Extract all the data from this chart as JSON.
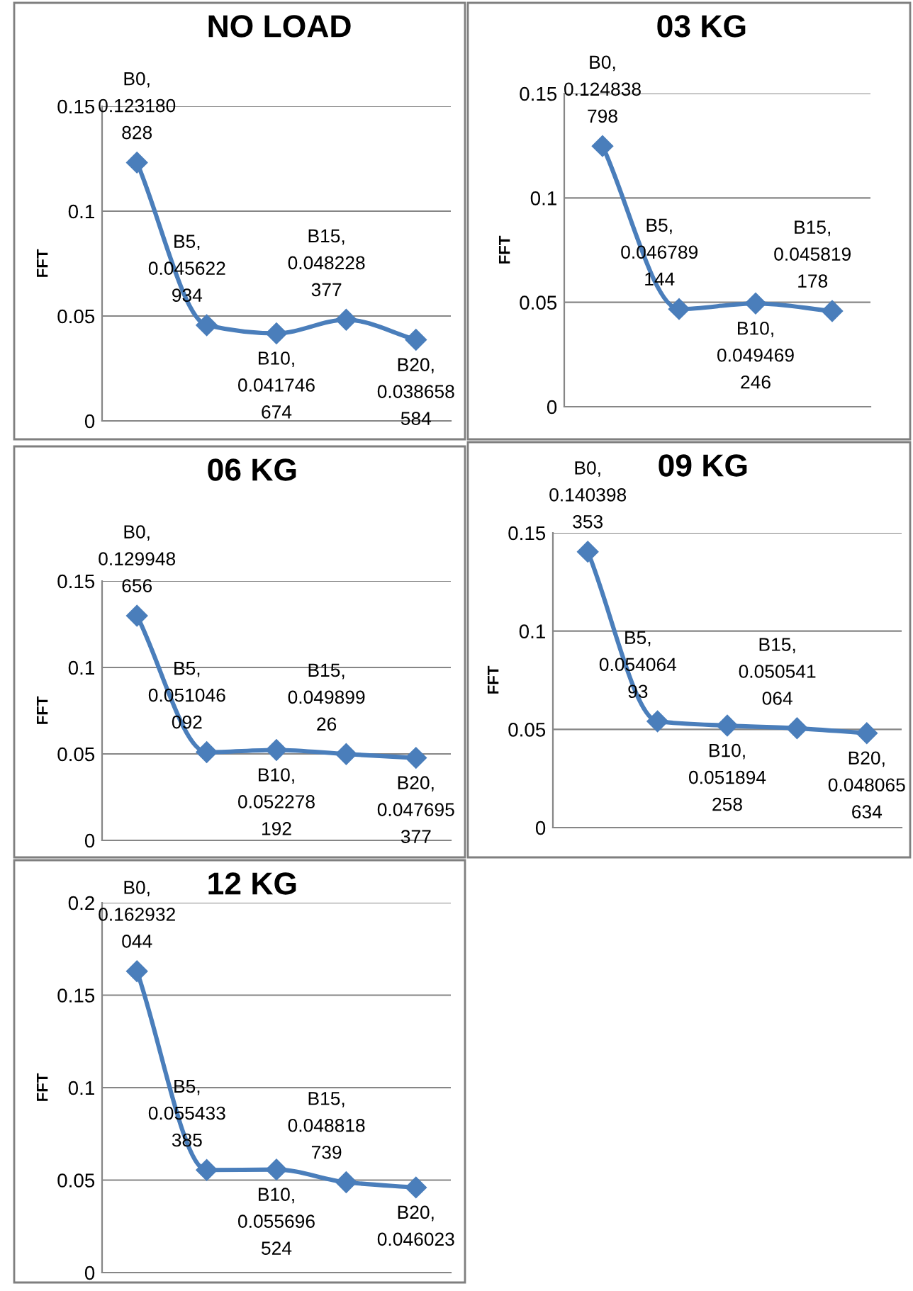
{
  "chart_data": [
    {
      "type": "line",
      "title": "NO LOAD",
      "ylabel": "FFT",
      "categories": [
        null,
        null,
        null,
        null,
        null
      ],
      "series": [
        {
          "color": "#4a7ebb",
          "values": [
            0.123180828,
            0.045622934,
            0.041746674,
            0.048228377,
            0.038658584
          ],
          "value_labels": [
            "B0, 0.123180828",
            "B5, 0.045622934",
            "B10, 0.041746674",
            "B15, 0.048228377",
            "B20, 0.038658584"
          ]
        }
      ],
      "ylim": [
        0,
        0.15
      ],
      "yticks": [
        0,
        0.05,
        0.1,
        0.15
      ],
      "grid": "y",
      "marker": "diamond",
      "tick_labels": "y"
    },
    {
      "type": "line",
      "title": "06 KG",
      "ylabel": "FFT",
      "categories": [
        null,
        null,
        null,
        null,
        null
      ],
      "series": [
        {
          "color": "#4a7ebb",
          "values": [
            0.129948656,
            0.051046092,
            0.052278192,
            0.04989926,
            0.047695377
          ],
          "value_labels": [
            "B0, 0.129948656",
            "B5, 0.051046092",
            "B10, 0.052278192",
            "B15, 0.04989926",
            "B20, 0.047695377"
          ]
        }
      ],
      "ylim": [
        0,
        0.15
      ],
      "yticks": [
        0,
        0.05,
        0.1,
        0.15
      ],
      "grid": "y",
      "marker": "diamond",
      "tick_labels": "y"
    },
    {
      "type": "line",
      "title": "12 KG",
      "ylabel": "FFT",
      "categories": [
        null,
        null,
        null,
        null,
        null
      ],
      "series": [
        {
          "color": "#4a7ebb",
          "values": [
            0.162932044,
            0.055433385,
            0.055696524,
            0.048818739,
            0.046023
          ],
          "value_labels": [
            "B0, 0.162932044",
            "B5, 0.055433385",
            "B10, 0.055696524",
            "B15, 0.048818739",
            "B20, 0.046023"
          ]
        }
      ],
      "ylim": [
        0,
        0.2
      ],
      "yticks": [
        0,
        0.05,
        0.1,
        0.15,
        0.2
      ],
      "grid": "y",
      "marker": "diamond",
      "tick_labels": "y"
    },
    {
      "type": "line",
      "title": "03 KG",
      "ylabel": "FFT",
      "categories": [
        null,
        null,
        null,
        null
      ],
      "series": [
        {
          "color": "#4a7ebb",
          "values": [
            0.124838798,
            0.046789144,
            0.049469246,
            0.045819178
          ],
          "value_labels": [
            "B0, 0.124838798",
            "B5, 0.046789144",
            "B10, 0.049469246",
            "B15, 0.045819178"
          ]
        }
      ],
      "ylim": [
        0,
        0.15
      ],
      "yticks": [
        0,
        0.05,
        0.1,
        0.15
      ],
      "grid": "y",
      "marker": "diamond",
      "tick_labels": "y"
    },
    {
      "type": "line",
      "title": "09 KG",
      "ylabel": "FFT",
      "categories": [
        null,
        null,
        null,
        null,
        null
      ],
      "series": [
        {
          "color": "#4a7ebb",
          "values": [
            0.140398353,
            0.05406493,
            0.051894258,
            0.050541064,
            0.048065634
          ],
          "value_labels": [
            "B0, 0.140398353",
            "B5, 0.05406493",
            "B10, 0.051894258",
            "B15, 0.050541064",
            "B20, 0.048065634"
          ]
        }
      ],
      "ylim": [
        0,
        0.15
      ],
      "yticks": [
        0,
        0.05,
        0.1,
        0.15
      ],
      "grid": "y",
      "marker": "diamond",
      "tick_labels": "y"
    }
  ]
}
